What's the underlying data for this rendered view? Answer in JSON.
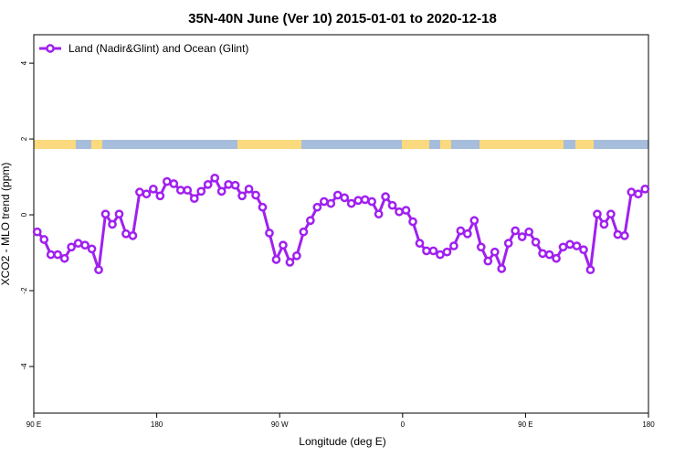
{
  "chart_data": {
    "type": "line",
    "title": "35N-40N June (Ver 10)   2015-01-01 to 2020-12-18",
    "x_label": "Longitude (deg E)",
    "y_label": "XCO2 - MLO trend (ppm)",
    "xlim": [
      90,
      540
    ],
    "ylim": [
      -5.23,
      4.75
    ],
    "xticks": [
      {
        "value": 90,
        "label": "90 E"
      },
      {
        "value": 180,
        "label": "180"
      },
      {
        "value": 270,
        "label": "90 W"
      },
      {
        "value": 360,
        "label": "0"
      },
      {
        "value": 450,
        "label": "90 E"
      },
      {
        "value": 540,
        "label": "180"
      }
    ],
    "yticks": [
      4,
      2,
      0,
      -2,
      -4
    ],
    "legend_position": "top-left",
    "x": [
      92.5,
      97.5,
      102.5,
      107.5,
      112.5,
      117.5,
      122.5,
      127.5,
      132.5,
      137.5,
      142.5,
      147.5,
      152.5,
      157.5,
      162.5,
      167.5,
      172.5,
      177.5,
      182.5,
      187.5,
      192.5,
      197.5,
      202.5,
      207.5,
      212.5,
      217.5,
      222.5,
      227.5,
      232.5,
      237.5,
      242.5,
      247.5,
      252.5,
      257.5,
      262.5,
      267.5,
      272.5,
      277.5,
      282.5,
      287.5,
      292.5,
      297.5,
      302.5,
      307.5,
      312.5,
      317.5,
      322.5,
      327.5,
      332.5,
      337.5,
      342.5,
      347.5,
      352.5,
      357.5,
      362.5,
      367.5,
      372.5,
      377.5,
      382.5,
      387.5,
      392.5,
      397.5,
      402.5,
      407.5,
      412.5,
      417.5,
      422.5,
      427.5,
      432.5,
      437.5,
      442.5,
      447.5,
      452.5,
      457.5,
      462.5,
      467.5,
      472.5,
      477.5,
      482.5,
      487.5,
      492.5,
      497.5,
      502.5,
      507.5,
      512.5,
      517.5,
      522.5,
      527.5,
      532.5,
      537.5
    ],
    "series": [
      {
        "name": "Land (Nadir&Glint) and Ocean (Glint)",
        "color": "#a020f0",
        "values": [
          -0.45,
          -0.65,
          -1.05,
          -1.05,
          -1.15,
          -0.85,
          -0.75,
          -0.8,
          -0.9,
          -1.45,
          0.02,
          -0.25,
          0.02,
          -0.5,
          -0.55,
          0.6,
          0.55,
          0.68,
          0.5,
          0.88,
          0.82,
          0.65,
          0.65,
          0.43,
          0.62,
          0.8,
          0.97,
          0.62,
          0.8,
          0.78,
          0.5,
          0.68,
          0.52,
          0.2,
          -0.48,
          -1.18,
          -0.8,
          -1.25,
          -1.08,
          -0.45,
          -0.15,
          0.2,
          0.35,
          0.3,
          0.52,
          0.45,
          0.3,
          0.38,
          0.4,
          0.35,
          0.02,
          0.48,
          0.25,
          0.08,
          0.12,
          -0.18,
          -0.75,
          -0.95,
          -0.95,
          -1.05,
          -0.98,
          -0.82,
          -0.42,
          -0.5,
          -0.15,
          -0.85,
          -1.22,
          -0.98,
          -1.42,
          -0.75,
          -0.42,
          -0.58,
          -0.45,
          -0.72,
          -1.02,
          -1.05,
          -1.15,
          -0.85,
          -0.78,
          -0.82,
          -0.92,
          -1.45,
          0.02,
          -0.25,
          0.02,
          -0.52,
          -0.55,
          0.6,
          0.55,
          0.68
        ]
      }
    ]
  }
}
